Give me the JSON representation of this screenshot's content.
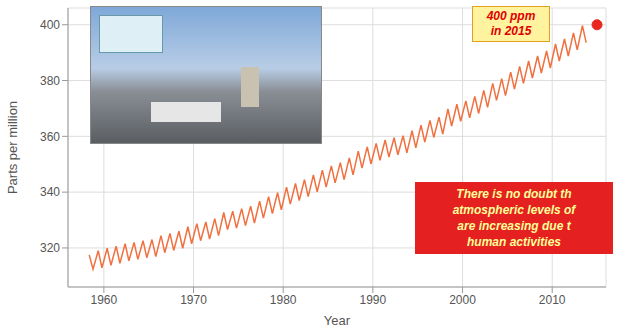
{
  "chart_data": {
    "type": "line",
    "x_label": "Year",
    "y_label": "Parts per million",
    "xlim": [
      1956,
      2016
    ],
    "xticks": [
      1960,
      1970,
      1980,
      1990,
      2000,
      2010
    ],
    "ylim": [
      306,
      406
    ],
    "yticks": [
      320,
      340,
      360,
      380,
      400
    ],
    "grid": true,
    "color": "#f07040",
    "x": [
      1958.37,
      1958.79,
      1959.37,
      1959.79,
      1960.37,
      1960.79,
      1961.37,
      1961.79,
      1962.37,
      1962.79,
      1963.37,
      1963.79,
      1964.37,
      1964.79,
      1965.37,
      1965.79,
      1966.37,
      1966.79,
      1967.37,
      1967.79,
      1968.37,
      1968.79,
      1969.37,
      1969.79,
      1970.37,
      1970.79,
      1971.37,
      1971.79,
      1972.37,
      1972.79,
      1973.37,
      1973.79,
      1974.37,
      1974.79,
      1975.37,
      1975.79,
      1976.37,
      1976.79,
      1977.37,
      1977.79,
      1978.37,
      1978.79,
      1979.37,
      1979.79,
      1980.37,
      1980.79,
      1981.37,
      1981.79,
      1982.37,
      1982.79,
      1983.37,
      1983.79,
      1984.37,
      1984.79,
      1985.37,
      1985.79,
      1986.37,
      1986.79,
      1987.37,
      1987.79,
      1988.37,
      1988.79,
      1989.37,
      1989.79,
      1990.37,
      1990.79,
      1991.37,
      1991.79,
      1992.37,
      1992.79,
      1993.37,
      1993.79,
      1994.37,
      1994.79,
      1995.37,
      1995.79,
      1996.37,
      1996.79,
      1997.37,
      1997.79,
      1998.37,
      1998.79,
      1999.37,
      1999.79,
      2000.37,
      2000.79,
      2001.37,
      2001.79,
      2002.37,
      2002.79,
      2003.37,
      2003.79,
      2004.37,
      2004.79,
      2005.37,
      2005.79,
      2006.37,
      2006.79,
      2007.37,
      2007.79,
      2008.37,
      2008.79,
      2009.37,
      2009.79,
      2010.37,
      2010.79,
      2011.37,
      2011.79,
      2012.37,
      2012.79,
      2013.37,
      2013.79
    ],
    "values": [
      317.5,
      312.4,
      319.0,
      312.9,
      319.9,
      313.8,
      320.6,
      314.5,
      321.5,
      315.4,
      322.0,
      315.9,
      322.6,
      316.5,
      323.0,
      316.9,
      324.4,
      318.3,
      325.2,
      319.1,
      326.0,
      319.9,
      327.6,
      321.5,
      328.7,
      322.6,
      329.3,
      323.2,
      330.5,
      324.4,
      332.7,
      326.6,
      333.2,
      327.1,
      334.1,
      328.0,
      335.0,
      328.9,
      336.8,
      330.7,
      338.4,
      332.3,
      339.8,
      333.7,
      341.8,
      335.7,
      343.1,
      337.0,
      344.5,
      338.4,
      346.2,
      340.1,
      347.9,
      341.8,
      349.4,
      343.3,
      350.6,
      344.5,
      352.3,
      346.2,
      354.7,
      348.6,
      356.2,
      350.1,
      357.5,
      351.4,
      358.7,
      352.6,
      359.5,
      353.4,
      360.2,
      354.1,
      362.0,
      355.9,
      364.0,
      357.9,
      365.7,
      359.6,
      366.9,
      360.8,
      369.8,
      363.7,
      371.5,
      365.4,
      372.7,
      366.6,
      374.3,
      368.2,
      376.5,
      370.4,
      379.0,
      372.9,
      380.7,
      374.6,
      383.0,
      376.9,
      385.1,
      379.0,
      387.0,
      380.9,
      388.8,
      382.7,
      390.6,
      384.5,
      393.1,
      387.0,
      394.9,
      388.8,
      397.1,
      391.0,
      399.7,
      393.6
    ],
    "annotations": [
      {
        "text": [
          "400 ppm",
          "in 2015"
        ],
        "x": 2015,
        "y": 400,
        "color": "#e8281e"
      },
      {
        "text": [
          "There is no doubt th",
          "atmospheric levels of",
          "are increasing due t",
          "human activities"
        ]
      }
    ]
  }
}
